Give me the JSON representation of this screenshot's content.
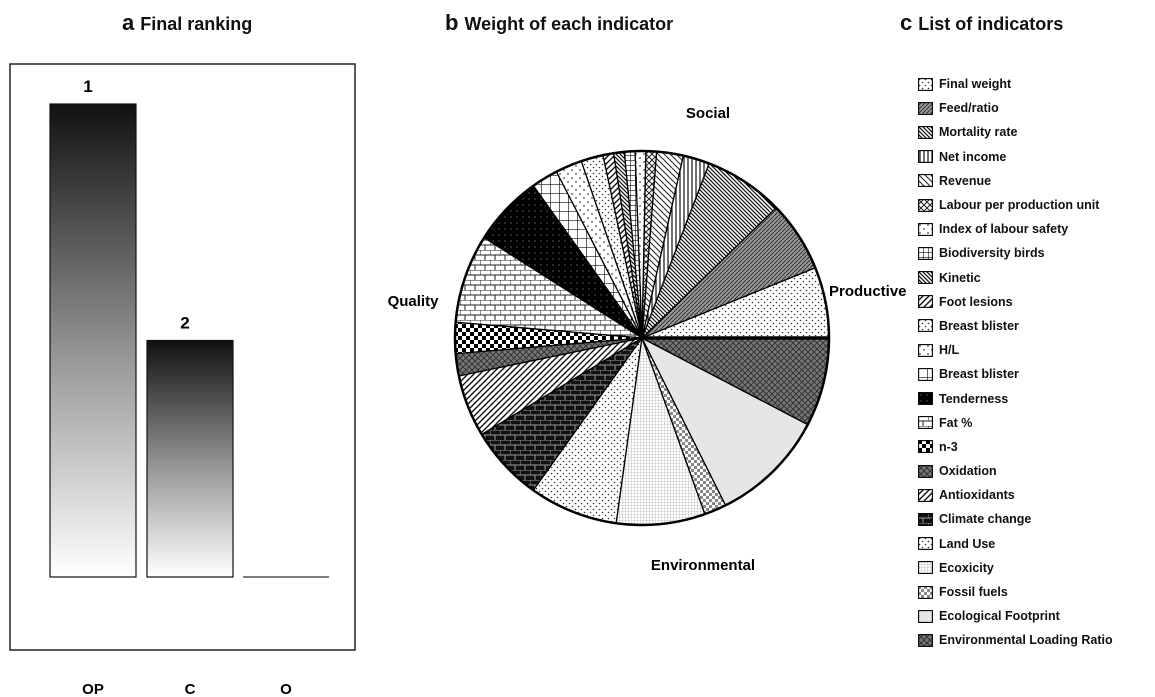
{
  "panel_a": {
    "letter": "a",
    "title": "Final ranking"
  },
  "panel_b": {
    "letter": "b",
    "title": "Weight of each indicator"
  },
  "panel_c": {
    "letter": "c",
    "title": "List of indicators"
  },
  "chart_data": [
    {
      "type": "bar",
      "categories": [
        "OP",
        "C",
        "O"
      ],
      "values": [
        1.0,
        0.5,
        0.0
      ],
      "ranks": [
        "1",
        "2",
        ""
      ],
      "ylim": [
        0,
        1.1
      ]
    },
    {
      "type": "pie",
      "sector_labels": [
        "Social",
        "Productive",
        "Environmental",
        "Quality"
      ],
      "slices": [
        {
          "label": "Final weight",
          "value": 8,
          "sector": "Productive",
          "pattern": "dots"
        },
        {
          "label": "Feed/ratio",
          "value": 8,
          "sector": "Productive",
          "pattern": "diag-dense"
        },
        {
          "label": "Mortality rate",
          "value": 9,
          "sector": "Productive",
          "pattern": "diag-back-dense"
        },
        {
          "label": "Net income",
          "value": 3,
          "sector": "Productive",
          "pattern": "vlines"
        },
        {
          "label": "Revenue",
          "value": 3,
          "sector": "Productive",
          "pattern": "diag-back"
        },
        {
          "label": "Labour per production unit",
          "value": 1.2,
          "sector": "Social",
          "pattern": "cross-diag"
        },
        {
          "label": "Index of labour safety",
          "value": 1.2,
          "sector": "Social",
          "pattern": "dots-sparse"
        },
        {
          "label": "Biodiversity birds",
          "value": 1.2,
          "sector": "Social",
          "pattern": "grid"
        },
        {
          "label": "Kinetic",
          "value": 1.2,
          "sector": "Social",
          "pattern": "diag-back-dense"
        },
        {
          "label": "Foot lesions",
          "value": 1.2,
          "sector": "Social",
          "pattern": "diag"
        },
        {
          "label": "Breast blister",
          "value": 2.5,
          "sector": "Social",
          "pattern": "dots"
        },
        {
          "label": "H/L",
          "value": 3,
          "sector": "Social",
          "pattern": "dots-sparse"
        },
        {
          "label": "Breast blister",
          "value": 3,
          "sector": "Social",
          "pattern": "grid-wide"
        },
        {
          "label": "Tenderness",
          "value": 8,
          "sector": "Quality",
          "pattern": "solid-dark"
        },
        {
          "label": "Fat %",
          "value": 10,
          "sector": "Quality",
          "pattern": "brick"
        },
        {
          "label": "n-3",
          "value": 3.5,
          "sector": "Quality",
          "pattern": "checker"
        },
        {
          "label": "Oxidation",
          "value": 2.5,
          "sector": "Quality",
          "pattern": "cross-dark"
        },
        {
          "label": "Antioxidants",
          "value": 7,
          "sector": "Quality",
          "pattern": "diag"
        },
        {
          "label": "Climate change",
          "value": 8.5,
          "sector": "Environmental",
          "pattern": "brick-dark"
        },
        {
          "label": "Land Use",
          "value": 10,
          "sector": "Environmental",
          "pattern": "dots"
        },
        {
          "label": "Ecoxicity",
          "value": 10,
          "sector": "Environmental",
          "pattern": "fine-grid"
        },
        {
          "label": "Fossil fuels",
          "value": 2.5,
          "sector": "Environmental",
          "pattern": "checker-light"
        },
        {
          "label": "Ecological Footprint",
          "value": 13,
          "sector": "Environmental",
          "pattern": "light-solid"
        },
        {
          "label": "Environmental Loading Ratio",
          "value": 10,
          "sector": "Environmental",
          "pattern": "cross-dark"
        }
      ]
    }
  ],
  "legend": [
    {
      "label": "Final weight",
      "pattern": "dots"
    },
    {
      "label": "Feed/ratio",
      "pattern": "diag-dense"
    },
    {
      "label": "Mortality rate",
      "pattern": "diag-back-dense"
    },
    {
      "label": "Net income",
      "pattern": "vlines"
    },
    {
      "label": "Revenue",
      "pattern": "diag-back"
    },
    {
      "label": "Labour per production unit",
      "pattern": "cross-diag"
    },
    {
      "label": "Index of labour safety",
      "pattern": "dots-sparse"
    },
    {
      "label": "Biodiversity birds",
      "pattern": "grid"
    },
    {
      "label": "Kinetic",
      "pattern": "diag-back-dense"
    },
    {
      "label": "Foot lesions",
      "pattern": "diag"
    },
    {
      "label": "Breast blister",
      "pattern": "dots"
    },
    {
      "label": "H/L",
      "pattern": "dots-sparse"
    },
    {
      "label": "Breast blister",
      "pattern": "grid-wide"
    },
    {
      "label": "Tenderness",
      "pattern": "solid-dark"
    },
    {
      "label": "Fat %",
      "pattern": "brick"
    },
    {
      "label": "n-3",
      "pattern": "checker"
    },
    {
      "label": "Oxidation",
      "pattern": "cross-dark"
    },
    {
      "label": "Antioxidants",
      "pattern": "diag"
    },
    {
      "label": "Climate change",
      "pattern": "brick-dark"
    },
    {
      "label": "Land Use",
      "pattern": "dots"
    },
    {
      "label": "Ecoxicity",
      "pattern": "fine-grid"
    },
    {
      "label": "Fossil fuels",
      "pattern": "checker-light"
    },
    {
      "label": "Ecological Footprint",
      "pattern": "light-solid"
    },
    {
      "label": "Environmental Loading Ratio",
      "pattern": "cross-dark"
    }
  ]
}
